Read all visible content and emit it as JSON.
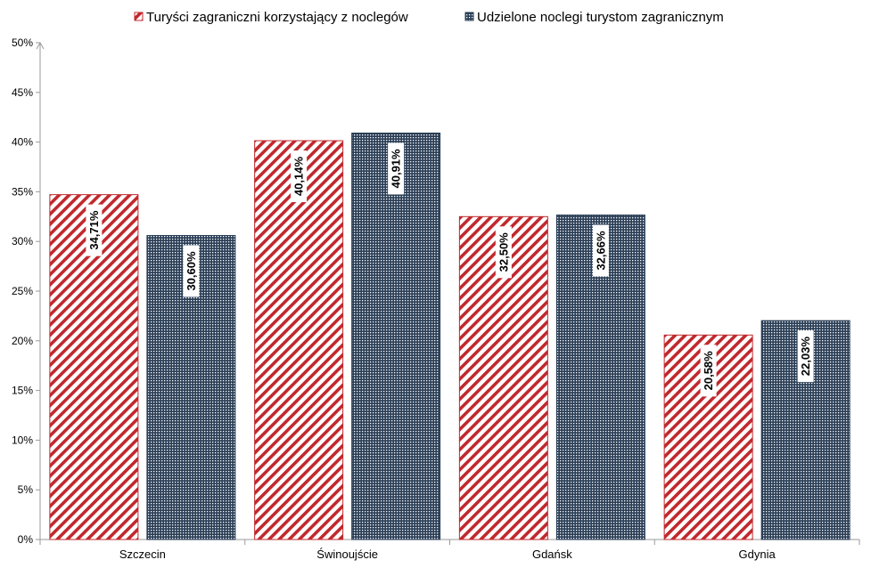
{
  "chart_data": {
    "type": "bar",
    "title": "",
    "xlabel": "",
    "ylabel": "",
    "categories": [
      "Szczecin",
      "Świnoujście",
      "Gdańsk",
      "Gdynia"
    ],
    "series": [
      {
        "name": "Turyści zagraniczni korzystający z noclegów",
        "values": [
          34.71,
          40.14,
          32.5,
          20.58
        ],
        "labels": [
          "34,71%",
          "40,14%",
          "32,50%",
          "20,58%"
        ],
        "color": "#c0282d",
        "pattern": "diagonal-hatch"
      },
      {
        "name": "Udzielone noclegi turystom zagranicznym",
        "values": [
          30.6,
          40.91,
          32.66,
          22.03
        ],
        "labels": [
          "30,60%",
          "40,91%",
          "32,66%",
          "22,03%"
        ],
        "color": "#2b3f57",
        "pattern": "grid-dots"
      }
    ],
    "ylim": [
      0,
      50
    ],
    "yticks": [
      "0%",
      "5%",
      "10%",
      "15%",
      "20%",
      "25%",
      "30%",
      "35%",
      "40%",
      "45%",
      "50%"
    ],
    "grid": false,
    "legend_position": "top"
  }
}
